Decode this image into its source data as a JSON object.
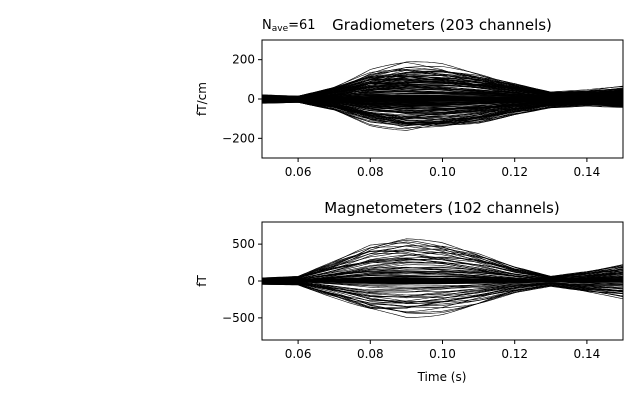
{
  "chart_data": [
    {
      "type": "line",
      "title": "Gradiometers (203 channels)",
      "nave": {
        "prefix": "N",
        "sub": "ave",
        "suffix": "=61"
      },
      "xlabel": "",
      "ylabel": "fT/cm",
      "xlim": [
        0.05,
        0.15
      ],
      "ylim": [
        -300,
        300
      ],
      "xticks": [
        0.06,
        0.08,
        0.1,
        0.12,
        0.14
      ],
      "xticklabels": [
        "0.06",
        "0.08",
        "0.10",
        "0.12",
        "0.14"
      ],
      "yticks": [
        200,
        0,
        -200
      ],
      "yticklabels": [
        "200",
        "0",
        "−200"
      ],
      "grid": false,
      "line_color": "#000000",
      "series_count": 203,
      "envelope": {
        "t": [
          0.05,
          0.06,
          0.07,
          0.08,
          0.09,
          0.1,
          0.11,
          0.12,
          0.13,
          0.14,
          0.15
        ],
        "max": [
          20,
          15,
          60,
          130,
          160,
          150,
          120,
          80,
          35,
          40,
          55
        ],
        "min": [
          -20,
          -15,
          -50,
          -115,
          -145,
          -135,
          -110,
          -70,
          -40,
          -30,
          -40
        ]
      }
    },
    {
      "type": "line",
      "title": "Magnetometers (102 channels)",
      "xlabel": "Time (s)",
      "ylabel": "fT",
      "xlim": [
        0.05,
        0.15
      ],
      "ylim": [
        -800,
        800
      ],
      "xticks": [
        0.06,
        0.08,
        0.1,
        0.12,
        0.14
      ],
      "xticklabels": [
        "0.06",
        "0.08",
        "0.10",
        "0.12",
        "0.14"
      ],
      "yticks": [
        500,
        0,
        -500
      ],
      "yticklabels": [
        "500",
        "0",
        "−500"
      ],
      "grid": false,
      "line_color": "#000000",
      "series_count": 102,
      "envelope": {
        "t": [
          0.05,
          0.06,
          0.07,
          0.08,
          0.09,
          0.1,
          0.11,
          0.12,
          0.13,
          0.14,
          0.15
        ],
        "max": [
          40,
          60,
          250,
          450,
          520,
          470,
          350,
          180,
          60,
          120,
          200
        ],
        "min": [
          -40,
          -50,
          -220,
          -400,
          -440,
          -380,
          -280,
          -150,
          -70,
          -150,
          -210
        ]
      }
    }
  ]
}
